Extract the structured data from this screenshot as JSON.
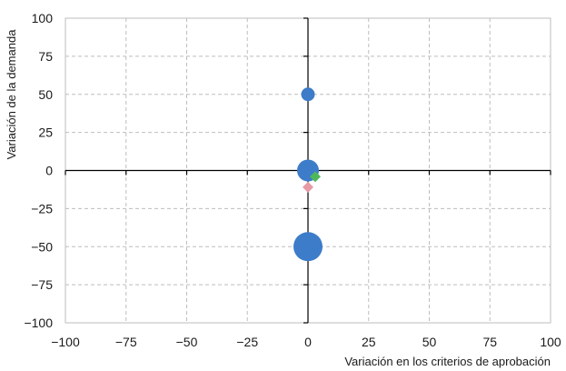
{
  "chart_data": {
    "type": "scatter",
    "title": "",
    "xlabel": "Variación en los criterios de aprobación",
    "ylabel": "Variación de la demanda",
    "xlim": [
      -100,
      100
    ],
    "ylim": [
      -100,
      100
    ],
    "xticks": [
      -100,
      -75,
      -50,
      -25,
      0,
      25,
      50,
      75,
      100
    ],
    "yticks": [
      -100,
      -75,
      -50,
      -25,
      0,
      25,
      50,
      75,
      100
    ],
    "grid": true,
    "legend": "none",
    "series": [
      {
        "marker": "circle",
        "color": "#3d7cc9",
        "points": [
          {
            "x": 0,
            "y": 50,
            "size": 1
          },
          {
            "x": 0,
            "y": 0,
            "size": 2
          },
          {
            "x": 0,
            "y": -50,
            "size": 3
          }
        ]
      },
      {
        "marker": "diamond",
        "color": "#4db85a",
        "points": [
          {
            "x": 3,
            "y": -4,
            "size": 1
          }
        ]
      },
      {
        "marker": "diamond",
        "color": "#e899a6",
        "points": [
          {
            "x": 0,
            "y": -11,
            "size": 1
          }
        ]
      }
    ]
  }
}
